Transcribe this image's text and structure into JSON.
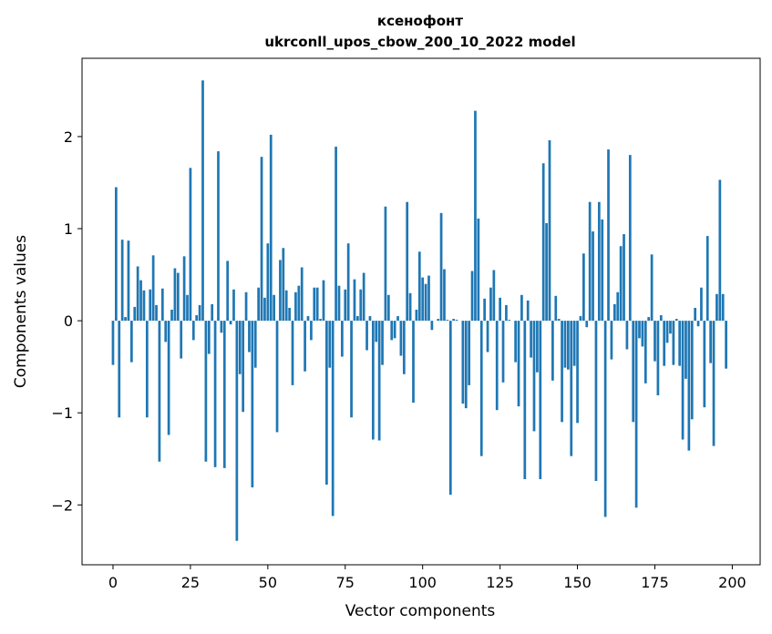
{
  "chart_data": {
    "type": "bar",
    "title_line1": "ксенофонт",
    "title_line2": "ukrconll_upos_cbow_200_10_2022 model",
    "xlabel": "Vector components",
    "ylabel": "Components values",
    "xlim": [
      -10,
      209
    ],
    "ylim": [
      -2.65,
      2.85
    ],
    "x_ticks": [
      0,
      25,
      50,
      75,
      100,
      125,
      150,
      175,
      200
    ],
    "y_ticks": [
      -2,
      -1,
      0,
      1,
      2
    ],
    "x_tick_labels": [
      "0",
      "25",
      "50",
      "75",
      "100",
      "125",
      "150",
      "175",
      "200"
    ],
    "y_tick_labels": [
      "−2",
      "−1",
      "0",
      "1",
      "2"
    ],
    "grid": false,
    "bar_color": "#1f77b4",
    "values": [
      -0.48,
      1.45,
      -1.05,
      0.88,
      0.04,
      0.87,
      -0.45,
      0.15,
      0.59,
      0.44,
      0.33,
      -1.05,
      0.34,
      0.71,
      0.17,
      -1.53,
      0.35,
      -0.23,
      -1.24,
      0.12,
      0.57,
      0.52,
      -0.41,
      0.7,
      0.28,
      1.66,
      -0.21,
      0.06,
      0.17,
      2.61,
      -1.53,
      -0.36,
      0.18,
      -1.59,
      1.84,
      -0.13,
      -1.6,
      0.65,
      -0.04,
      0.34,
      -2.39,
      -0.58,
      -0.99,
      0.31,
      -0.34,
      -1.81,
      -0.51,
      0.36,
      1.78,
      0.25,
      0.84,
      2.02,
      0.28,
      -1.21,
      0.66,
      0.79,
      0.33,
      0.14,
      -0.7,
      0.31,
      0.38,
      0.58,
      -0.55,
      0.05,
      -0.21,
      0.36,
      0.36,
      0.02,
      0.44,
      -1.78,
      -0.51,
      -2.12,
      1.89,
      0.38,
      -0.39,
      0.34,
      0.84,
      -1.05,
      0.45,
      0.05,
      0.34,
      0.52,
      -0.32,
      0.05,
      -1.29,
      -0.23,
      -1.3,
      -0.48,
      1.24,
      0.28,
      -0.21,
      -0.19,
      0.05,
      -0.38,
      -0.58,
      1.29,
      0.3,
      -0.89,
      0.12,
      0.75,
      0.47,
      0.4,
      0.49,
      -0.1,
      0.0,
      0.02,
      1.17,
      0.56,
      0.01,
      -1.89,
      0.02,
      0.01,
      0.0,
      -0.9,
      -0.95,
      -0.7,
      0.54,
      2.28,
      1.11,
      -1.47,
      0.24,
      -0.34,
      0.36,
      0.55,
      -0.97,
      0.25,
      -0.67,
      0.17,
      0.01,
      0.0,
      -0.45,
      -0.93,
      0.28,
      -1.72,
      0.22,
      -0.4,
      -1.2,
      -0.56,
      -1.72,
      1.71,
      1.06,
      1.96,
      -0.65,
      0.27,
      0.02,
      -1.1,
      -0.51,
      -0.53,
      -1.47,
      -0.49,
      -1.11,
      0.05,
      0.73,
      -0.07,
      1.29,
      0.97,
      -1.74,
      1.29,
      1.1,
      -2.13,
      1.86,
      -0.42,
      0.18,
      0.31,
      0.81,
      0.94,
      -0.31,
      1.8,
      -1.1,
      -2.03,
      -0.19,
      -0.28,
      -0.68,
      0.04,
      0.72,
      -0.44,
      -0.81,
      0.06,
      -0.49,
      -0.24,
      -0.14,
      -0.48,
      0.02,
      -0.49,
      -1.29,
      -0.63,
      -1.41,
      -1.07,
      0.14,
      -0.06,
      0.36,
      -0.94,
      0.92,
      -0.46,
      -1.36,
      0.29,
      1.53,
      0.29,
      -0.52
    ]
  }
}
